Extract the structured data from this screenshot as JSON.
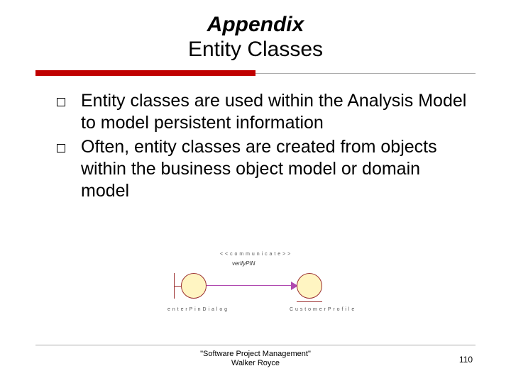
{
  "title": {
    "line1": "Appendix",
    "line2": "Entity Classes"
  },
  "colors": {
    "accent_red": "#c00000",
    "divider_gray": "#aaaaaa",
    "circle_fill": "#fff5c2",
    "circle_stroke": "#9b3030",
    "arrow": "#b04ab0",
    "text": "#000000"
  },
  "bullets": [
    "Entity classes are used within the Analysis Model to model persistent information",
    "Often, entity classes are created from objects within the business object model or domain model"
  ],
  "diagram": {
    "stereotype": "< < c o m m u n i c a t e > >",
    "message": "verifyPIN",
    "left_node": "e n t e r P i n D i a l o g",
    "right_node": "C u s t o m e r P r o f i l e"
  },
  "footer": {
    "line1": "\"Software Project Management\"",
    "line2": "Walker Royce",
    "page": "110"
  }
}
